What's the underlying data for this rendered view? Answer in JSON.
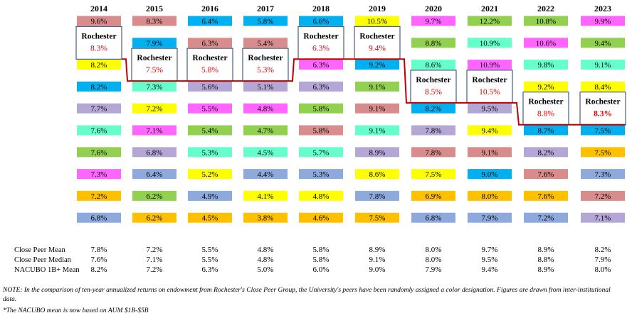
{
  "chart_data": {
    "type": "table",
    "title": "",
    "years": [
      "2014",
      "2015",
      "2016",
      "2017",
      "2018",
      "2019",
      "2020",
      "2021",
      "2022",
      "2023"
    ],
    "columns": [
      {
        "year": "2014",
        "cells": [
          {
            "v": "9.6%",
            "c": "#D98C8C"
          },
          {
            "rochester": true,
            "name": "Rochester",
            "v": "8.3%"
          },
          {
            "v": "8.2%",
            "c": "#FFFF00"
          },
          {
            "v": "8.2%",
            "c": "#00B0F0"
          },
          {
            "v": "7.7%",
            "c": "#B4A7D6"
          },
          {
            "v": "7.6%",
            "c": "#66FFCC"
          },
          {
            "v": "7.6%",
            "c": "#92D050"
          },
          {
            "v": "7.3%",
            "c": "#FF66FF"
          },
          {
            "v": "7.2%",
            "c": "#FFC000"
          },
          {
            "v": "6.8%",
            "c": "#8EA9DB"
          }
        ]
      },
      {
        "year": "2015",
        "cells": [
          {
            "v": "8.3%",
            "c": "#D98C8C"
          },
          {
            "v": "7.9%",
            "c": "#00B0F0"
          },
          {
            "rochester": true,
            "name": "Rochester",
            "v": "7.5%"
          },
          {
            "v": "7.3%",
            "c": "#66FFCC"
          },
          {
            "v": "7.2%",
            "c": "#FFFF00"
          },
          {
            "v": "7.1%",
            "c": "#FF66FF"
          },
          {
            "v": "6.8%",
            "c": "#B4A7D6"
          },
          {
            "v": "6.4%",
            "c": "#8EA9DB"
          },
          {
            "v": "6.2%",
            "c": "#92D050"
          },
          {
            "v": "6.2%",
            "c": "#FFC000"
          }
        ]
      },
      {
        "year": "2016",
        "cells": [
          {
            "v": "6.4%",
            "c": "#00B0F0"
          },
          {
            "v": "6.3%",
            "c": "#D98C8C"
          },
          {
            "rochester": true,
            "name": "Rochester",
            "v": "5.8%"
          },
          {
            "v": "5.6%",
            "c": "#B4A7D6"
          },
          {
            "v": "5.5%",
            "c": "#FF66FF"
          },
          {
            "v": "5.4%",
            "c": "#92D050"
          },
          {
            "v": "5.3%",
            "c": "#66FFCC"
          },
          {
            "v": "5.2%",
            "c": "#FFFF00"
          },
          {
            "v": "4.9%",
            "c": "#8EA9DB"
          },
          {
            "v": "4.5%",
            "c": "#FFC000"
          }
        ]
      },
      {
        "year": "2017",
        "cells": [
          {
            "v": "5.8%",
            "c": "#00B0F0"
          },
          {
            "v": "5.4%",
            "c": "#D98C8C"
          },
          {
            "rochester": true,
            "name": "Rochester",
            "v": "5.3%"
          },
          {
            "v": "5.1%",
            "c": "#B4A7D6"
          },
          {
            "v": "4.8%",
            "c": "#FF66FF"
          },
          {
            "v": "4.7%",
            "c": "#92D050"
          },
          {
            "v": "4.5%",
            "c": "#66FFCC"
          },
          {
            "v": "4.4%",
            "c": "#8EA9DB"
          },
          {
            "v": "4.1%",
            "c": "#FFFF00"
          },
          {
            "v": "3.8%",
            "c": "#FFC000"
          }
        ]
      },
      {
        "year": "2018",
        "cells": [
          {
            "v": "6.6%",
            "c": "#00B0F0"
          },
          {
            "rochester": true,
            "name": "Rochester",
            "v": "6.3%"
          },
          {
            "v": "6.3%",
            "c": "#FF66FF"
          },
          {
            "v": "6.3%",
            "c": "#B4A7D6"
          },
          {
            "v": "5.8%",
            "c": "#92D050"
          },
          {
            "v": "5.8%",
            "c": "#D98C8C"
          },
          {
            "v": "5.7%",
            "c": "#66FFCC"
          },
          {
            "v": "5.3%",
            "c": "#8EA9DB"
          },
          {
            "v": "4.8%",
            "c": "#FFFF00"
          },
          {
            "v": "4.6%",
            "c": "#FFC000"
          }
        ]
      },
      {
        "year": "2019",
        "cells": [
          {
            "v": "10.5%",
            "c": "#FFFF00"
          },
          {
            "rochester": true,
            "name": "Rochester",
            "v": "9.4%"
          },
          {
            "v": "9.2%",
            "c": "#00B0F0"
          },
          {
            "v": "9.1%",
            "c": "#92D050"
          },
          {
            "v": "9.1%",
            "c": "#D98C8C"
          },
          {
            "v": "9.1%",
            "c": "#66FFCC"
          },
          {
            "v": "8.9%",
            "c": "#B4A7D6"
          },
          {
            "v": "8.6%",
            "c": "#FFFF00"
          },
          {
            "v": "7.8%",
            "c": "#8EA9DB"
          },
          {
            "v": "7.5%",
            "c": "#FFC000"
          }
        ]
      },
      {
        "year": "2020",
        "cells": [
          {
            "v": "9.7%",
            "c": "#FF66FF"
          },
          {
            "v": "8.8%",
            "c": "#92D050"
          },
          {
            "v": "8.6%",
            "c": "#66FFCC"
          },
          {
            "rochester": true,
            "name": "Rochester",
            "v": "8.5%"
          },
          {
            "v": "8.2%",
            "c": "#00B0F0"
          },
          {
            "v": "7.8%",
            "c": "#B4A7D6"
          },
          {
            "v": "7.8%",
            "c": "#D98C8C"
          },
          {
            "v": "7.5%",
            "c": "#FFFF00"
          },
          {
            "v": "6.9%",
            "c": "#FFC000"
          },
          {
            "v": "6.8%",
            "c": "#8EA9DB"
          }
        ]
      },
      {
        "year": "2021",
        "cells": [
          {
            "v": "12.2%",
            "c": "#92D050"
          },
          {
            "v": "10.9%",
            "c": "#66FFCC"
          },
          {
            "v": "10.9%",
            "c": "#FF66FF"
          },
          {
            "rochester": true,
            "name": "Rochester",
            "v": "10.5%"
          },
          {
            "v": "9.5%",
            "c": "#B4A7D6"
          },
          {
            "v": "9.4%",
            "c": "#FFFF00"
          },
          {
            "v": "9.1%",
            "c": "#D98C8C"
          },
          {
            "v": "9.0%",
            "c": "#00B0F0"
          },
          {
            "v": "8.0%",
            "c": "#FFC000"
          },
          {
            "v": "7.9%",
            "c": "#8EA9DB"
          }
        ]
      },
      {
        "year": "2022",
        "cells": [
          {
            "v": "10.8%",
            "c": "#92D050"
          },
          {
            "v": "10.6%",
            "c": "#FF66FF"
          },
          {
            "v": "9.8%",
            "c": "#66FFCC"
          },
          {
            "v": "9.2%",
            "c": "#FFFF00"
          },
          {
            "rochester": true,
            "name": "Rochester",
            "v": "8.8%"
          },
          {
            "v": "8.7%",
            "c": "#00B0F0"
          },
          {
            "v": "8.2%",
            "c": "#B4A7D6"
          },
          {
            "v": "7.6%",
            "c": "#D98C8C"
          },
          {
            "v": "7.6%",
            "c": "#FFC000"
          },
          {
            "v": "7.2%",
            "c": "#8EA9DB"
          }
        ]
      },
      {
        "year": "2023",
        "cells": [
          {
            "v": "9.9%",
            "c": "#FF66FF"
          },
          {
            "v": "9.4%",
            "c": "#92D050"
          },
          {
            "v": "9.1%",
            "c": "#66FFCC"
          },
          {
            "v": "8.4%",
            "c": "#FFFF00"
          },
          {
            "rochester": true,
            "name": "Rochester",
            "v": "8.3%",
            "bold": true
          },
          {
            "v": "7.5%",
            "c": "#00B0F0"
          },
          {
            "v": "7.5%",
            "c": "#FFC000"
          },
          {
            "v": "7.3%",
            "c": "#8EA9DB"
          },
          {
            "v": "7.2%",
            "c": "#D98C8C"
          },
          {
            "v": "7.1%",
            "c": "#B4A7D6"
          }
        ]
      }
    ],
    "stats": [
      {
        "label": "Close Peer Mean",
        "values": [
          "7.8%",
          "7.2%",
          "5.5%",
          "4.8%",
          "5.8%",
          "8.9%",
          "8.0%",
          "9.7%",
          "8.9%",
          "8.2%"
        ]
      },
      {
        "label": "Close Peer Median",
        "values": [
          "7.6%",
          "7.1%",
          "5.5%",
          "4.8%",
          "5.8%",
          "9.1%",
          "8.0%",
          "9.5%",
          "8.8%",
          "7.9%"
        ]
      },
      {
        "label": "NACUBO 1B+ Mean",
        "values": [
          "8.2%",
          "7.2%",
          "6.3%",
          "5.0%",
          "6.0%",
          "9.0%",
          "7.9%",
          "9.4%",
          "8.9%",
          "8.0%"
        ]
      }
    ],
    "line_color": "#C00000"
  },
  "notes": {
    "note1": "NOTE: In the comparison of ten-year annualized returns on endowment from Rochester's Close Peer Group, the University's peers have been randomly assigned  a color designation. Figures are drawn from inter-institutional data.",
    "note2": "*The NACUBO mean is now based on AUM $1B-$5B"
  }
}
